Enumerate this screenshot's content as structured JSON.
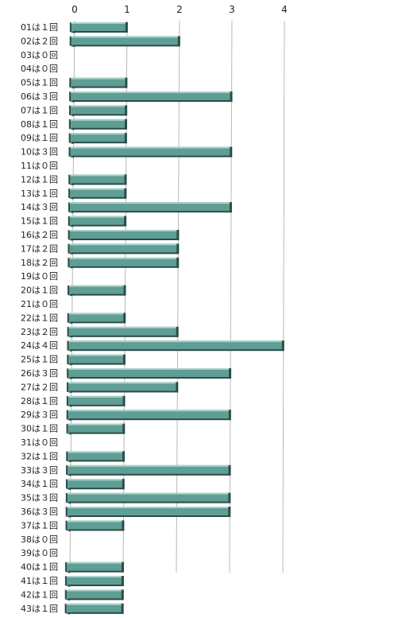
{
  "chart_data": {
    "type": "bar",
    "orientation": "horizontal",
    "categories": [
      "01は１回",
      "02は２回",
      "03は０回",
      "04は０回",
      "05は１回",
      "06は３回",
      "07は１回",
      "08は１回",
      "09は１回",
      "10は３回",
      "11は０回",
      "12は１回",
      "13は１回",
      "14は３回",
      "15は１回",
      "16は２回",
      "17は２回",
      "18は２回",
      "19は０回",
      "20は１回",
      "21は０回",
      "22は１回",
      "23は２回",
      "24は４回",
      "25は１回",
      "26は３回",
      "27は２回",
      "28は１回",
      "29は３回",
      "30は１回",
      "31は０回",
      "32は１回",
      "33は３回",
      "34は１回",
      "35は３回",
      "36は３回",
      "37は１回",
      "38は０回",
      "39は０回",
      "40は１回",
      "41は１回",
      "42は１回",
      "43は１回"
    ],
    "values": [
      1,
      2,
      0,
      0,
      1,
      3,
      1,
      1,
      1,
      3,
      0,
      1,
      1,
      3,
      1,
      2,
      2,
      2,
      0,
      1,
      0,
      1,
      2,
      4,
      1,
      3,
      2,
      1,
      3,
      1,
      0,
      1,
      3,
      1,
      3,
      3,
      1,
      0,
      0,
      1,
      1,
      1,
      1
    ],
    "xticks": [
      "0",
      "1",
      "2",
      "3",
      "4"
    ],
    "xlim": [
      0,
      4
    ],
    "grid": true,
    "title": "",
    "xlabel": "",
    "ylabel": "",
    "colors": {
      "bar_face": "#5f9e95",
      "bar_dark": "#2b4c47",
      "bar_top": "#a8d2cb",
      "grid": "#b8b8b8"
    }
  }
}
